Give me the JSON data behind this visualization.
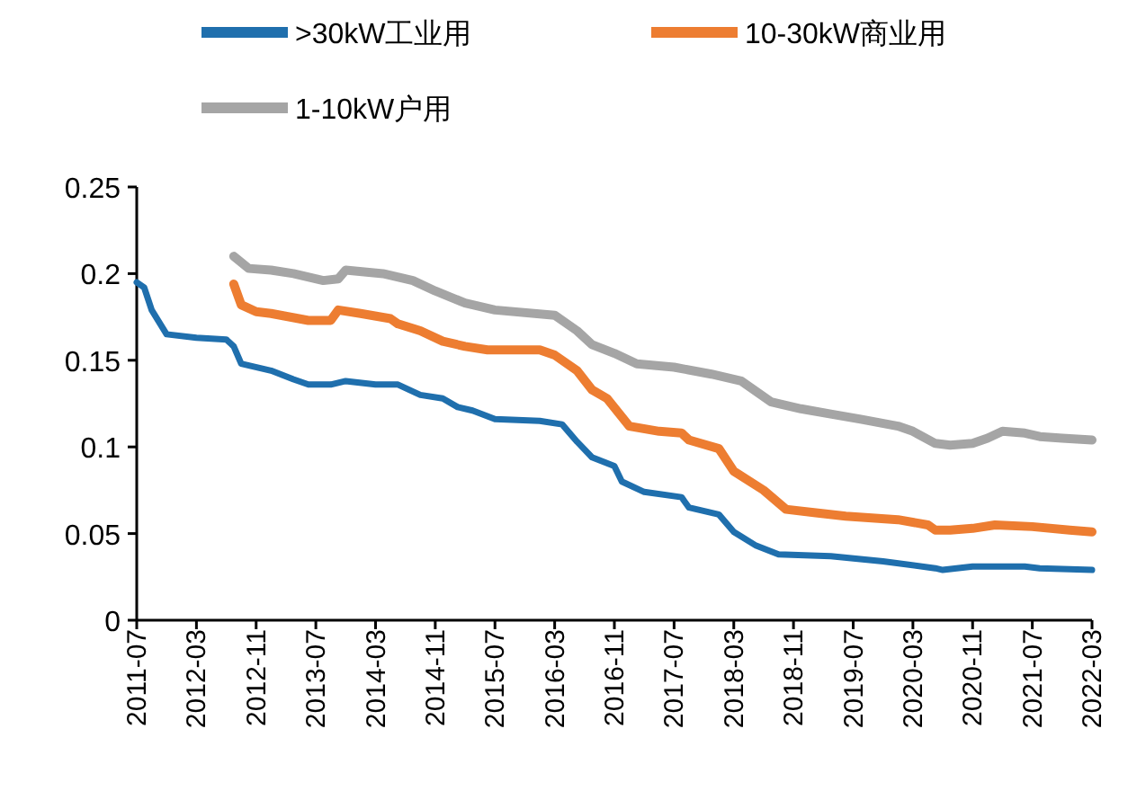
{
  "chart_data": {
    "type": "line",
    "legend": "top",
    "grid": false,
    "marker": "none",
    "line_style": "solid",
    "xlim": [
      "2011-07",
      "2022-03"
    ],
    "xticks": [
      "2011-07",
      "2012-03",
      "2012-11",
      "2013-07",
      "2014-03",
      "2014-11",
      "2015-07",
      "2016-03",
      "2016-11",
      "2017-07",
      "2018-03",
      "2018-11",
      "2019-07",
      "2020-03",
      "2020-11",
      "2021-07",
      "2022-03"
    ],
    "ylim": [
      0,
      0.25
    ],
    "yticks": [
      0,
      0.05,
      0.1,
      0.15,
      0.2,
      0.25
    ],
    "series": [
      {
        "name": ">30kW工业用",
        "color": "#1f6fad",
        "x": [
          "2011-07",
          "2011-08",
          "2011-09",
          "2011-11",
          "2012-03",
          "2012-07",
          "2012-08",
          "2012-09",
          "2013-01",
          "2013-04",
          "2013-06",
          "2013-09",
          "2013-11",
          "2014-03",
          "2014-06",
          "2014-09",
          "2014-12",
          "2015-02",
          "2015-04",
          "2015-07",
          "2016-01",
          "2016-04",
          "2016-06",
          "2016-08",
          "2016-11",
          "2016-12",
          "2017-03",
          "2017-08",
          "2017-09",
          "2018-01",
          "2018-03",
          "2018-06",
          "2018-09",
          "2019-04",
          "2019-11",
          "2020-06",
          "2020-07",
          "2020-11",
          "2021-06",
          "2021-08",
          "2022-03"
        ],
        "values": [
          0.195,
          0.192,
          0.179,
          0.165,
          0.163,
          0.162,
          0.158,
          0.148,
          0.144,
          0.139,
          0.136,
          0.136,
          0.138,
          0.136,
          0.136,
          0.13,
          0.128,
          0.123,
          0.121,
          0.116,
          0.115,
          0.113,
          0.103,
          0.094,
          0.089,
          0.08,
          0.074,
          0.071,
          0.065,
          0.061,
          0.051,
          0.043,
          0.038,
          0.037,
          0.034,
          0.03,
          0.029,
          0.031,
          0.031,
          0.03,
          0.029
        ]
      },
      {
        "name": "10-30kW商业用",
        "color": "#ed7d31",
        "x": [
          "2012-08",
          "2012-09",
          "2012-11",
          "2013-01",
          "2013-06",
          "2013-09",
          "2013-10",
          "2014-01",
          "2014-05",
          "2014-06",
          "2014-09",
          "2014-12",
          "2015-03",
          "2015-06",
          "2016-01",
          "2016-03",
          "2016-06",
          "2016-08",
          "2016-10",
          "2017-01",
          "2017-05",
          "2017-08",
          "2017-09",
          "2018-01",
          "2018-03",
          "2018-07",
          "2018-10",
          "2019-02",
          "2019-06",
          "2020-01",
          "2020-05",
          "2020-06",
          "2020-08",
          "2020-11",
          "2021-02",
          "2021-07",
          "2021-12",
          "2022-03"
        ],
        "values": [
          0.194,
          0.182,
          0.178,
          0.177,
          0.173,
          0.173,
          0.179,
          0.177,
          0.174,
          0.171,
          0.167,
          0.161,
          0.158,
          0.156,
          0.156,
          0.153,
          0.144,
          0.133,
          0.128,
          0.112,
          0.109,
          0.108,
          0.104,
          0.099,
          0.086,
          0.075,
          0.064,
          0.062,
          0.06,
          0.058,
          0.055,
          0.052,
          0.052,
          0.053,
          0.055,
          0.054,
          0.052,
          0.051
        ]
      },
      {
        "name": "1-10kW户用",
        "color": "#a5a5a5",
        "x": [
          "2012-08",
          "2012-10",
          "2013-01",
          "2013-04",
          "2013-08",
          "2013-10",
          "2013-11",
          "2014-04",
          "2014-08",
          "2014-11",
          "2015-03",
          "2015-07",
          "2016-03",
          "2016-06",
          "2016-08",
          "2016-11",
          "2017-02",
          "2017-07",
          "2017-12",
          "2018-04",
          "2018-08",
          "2018-12",
          "2019-04",
          "2019-08",
          "2020-01",
          "2020-03",
          "2020-06",
          "2020-08",
          "2020-11",
          "2021-01",
          "2021-03",
          "2021-06",
          "2021-08",
          "2021-11",
          "2022-03"
        ],
        "values": [
          0.21,
          0.203,
          0.202,
          0.2,
          0.196,
          0.197,
          0.202,
          0.2,
          0.196,
          0.19,
          0.183,
          0.179,
          0.176,
          0.167,
          0.159,
          0.154,
          0.148,
          0.146,
          0.142,
          0.138,
          0.126,
          0.122,
          0.119,
          0.116,
          0.112,
          0.109,
          0.102,
          0.101,
          0.102,
          0.105,
          0.109,
          0.108,
          0.106,
          0.105,
          0.104
        ]
      }
    ]
  }
}
